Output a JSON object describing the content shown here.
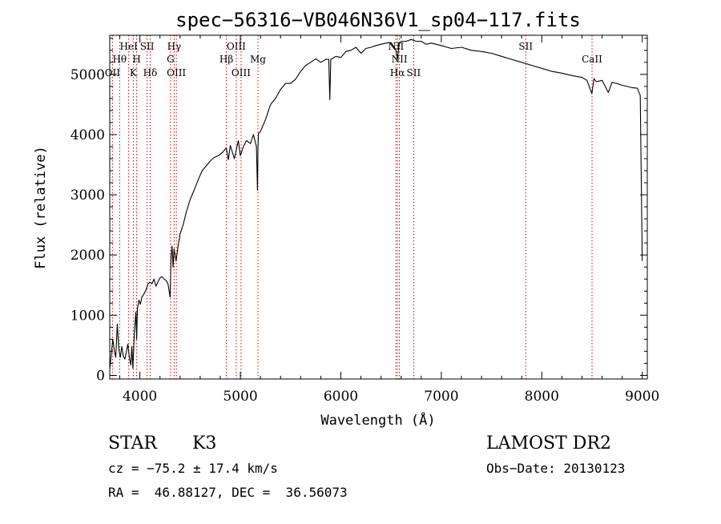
{
  "chart_data": {
    "type": "line",
    "title": "spec−56316−VB046N36V1_sp04−117.fits",
    "xlabel": "Wavelength (Å)",
    "ylabel": "Flux (relative)",
    "xlim": [
      3700,
      9050
    ],
    "ylim": [
      -60,
      5650
    ],
    "xticks": [
      4000,
      5000,
      6000,
      7000,
      8000,
      9000
    ],
    "yticks": [
      0,
      1000,
      2000,
      3000,
      4000,
      5000
    ],
    "grid": false,
    "series": [
      {
        "name": "flux",
        "x": [
          3700,
          3715,
          3730,
          3745,
          3760,
          3775,
          3790,
          3805,
          3820,
          3835,
          3850,
          3865,
          3880,
          3895,
          3910,
          3920,
          3930,
          3945,
          3960,
          3968,
          3975,
          3990,
          4005,
          4020,
          4040,
          4060,
          4080,
          4100,
          4120,
          4140,
          4160,
          4180,
          4200,
          4220,
          4240,
          4260,
          4280,
          4300,
          4310,
          4320,
          4330,
          4340,
          4360,
          4380,
          4400,
          4430,
          4460,
          4500,
          4540,
          4580,
          4620,
          4660,
          4700,
          4740,
          4780,
          4820,
          4860,
          4880,
          4900,
          4940,
          4980,
          5000,
          5030,
          5060,
          5100,
          5130,
          5160,
          5170,
          5175,
          5180,
          5200,
          5250,
          5300,
          5350,
          5400,
          5450,
          5500,
          5550,
          5600,
          5650,
          5700,
          5750,
          5800,
          5850,
          5880,
          5890,
          5900,
          5950,
          6000,
          6050,
          6100,
          6150,
          6200,
          6250,
          6300,
          6350,
          6400,
          6450,
          6500,
          6550,
          6563,
          6580,
          6600,
          6650,
          6700,
          6750,
          6800,
          6850,
          6900,
          6950,
          7000,
          7100,
          7200,
          7300,
          7400,
          7500,
          7600,
          7700,
          7800,
          7900,
          8000,
          8100,
          8200,
          8300,
          8400,
          8450,
          8498,
          8520,
          8542,
          8600,
          8662,
          8700,
          8800,
          8850,
          8900,
          8950,
          8980,
          9000
        ],
        "values": [
          100,
          350,
          600,
          420,
          300,
          850,
          430,
          300,
          480,
          320,
          270,
          380,
          520,
          300,
          170,
          480,
          120,
          700,
          1050,
          600,
          1100,
          1250,
          1180,
          1300,
          1350,
          1420,
          1520,
          1550,
          1520,
          1600,
          1480,
          1550,
          1620,
          1640,
          1600,
          1580,
          1520,
          1300,
          1950,
          2150,
          1800,
          2100,
          1900,
          2150,
          2350,
          2500,
          2700,
          2920,
          3080,
          3250,
          3400,
          3480,
          3560,
          3620,
          3650,
          3700,
          3780,
          3580,
          3820,
          3600,
          3900,
          3650,
          3800,
          3900,
          3850,
          4000,
          3800,
          3080,
          3750,
          4020,
          4050,
          4250,
          4500,
          4600,
          4750,
          4850,
          4850,
          4920,
          5050,
          5150,
          5200,
          5260,
          5200,
          5250,
          5250,
          4580,
          5250,
          5300,
          5280,
          5380,
          5400,
          5450,
          5350,
          5430,
          5450,
          5480,
          5500,
          5520,
          5530,
          5400,
          5250,
          5500,
          5550,
          5550,
          5580,
          5550,
          5550,
          5500,
          5520,
          5500,
          5480,
          5430,
          5450,
          5400,
          5380,
          5350,
          5300,
          5250,
          5200,
          5150,
          5100,
          5050,
          5020,
          4980,
          4950,
          4900,
          4680,
          4930,
          4880,
          4900,
          4700,
          4870,
          4820,
          4800,
          4780,
          4770,
          4650,
          1900
        ]
      }
    ],
    "line_ids": [
      {
        "label": "OII",
        "x": 3727,
        "row": 3
      },
      {
        "label": "Hθ",
        "x": 3798,
        "row": 2
      },
      {
        "label": "HeI",
        "x": 3889,
        "row": 1
      },
      {
        "label": "K",
        "x": 3934,
        "row": 3
      },
      {
        "label": "H",
        "x": 3968,
        "row": 2
      },
      {
        "label": "SII",
        "x": 4072,
        "row": 1
      },
      {
        "label": "Hδ",
        "x": 4102,
        "row": 3
      },
      {
        "label": "Hγ",
        "x": 4341,
        "row": 1
      },
      {
        "label": "G",
        "x": 4305,
        "row": 2
      },
      {
        "label": "OIII",
        "x": 4363,
        "row": 3
      },
      {
        "label": "OIII",
        "x": 4959,
        "row": 1
      },
      {
        "label": "Hβ",
        "x": 4861,
        "row": 2
      },
      {
        "label": "OIII",
        "x": 5007,
        "row": 3
      },
      {
        "label": "Mg",
        "x": 5175,
        "row": 2
      },
      {
        "label": "NII",
        "x": 6548,
        "row": 1
      },
      {
        "label": "NII",
        "x": 6583,
        "row": 2
      },
      {
        "label": "Hα",
        "x": 6563,
        "row": 3
      },
      {
        "label": "SII",
        "x": 6725,
        "row": 3
      },
      {
        "label": "SII",
        "x": 7840,
        "row": 1
      },
      {
        "label": "CaII",
        "x": 8500,
        "row": 2
      }
    ]
  },
  "info": {
    "object_class": "STAR",
    "subclass": "K3",
    "survey": "LAMOST DR2",
    "redshift": "cz = −75.2 ± 17.4 km/s",
    "obs_date": "Obs−Date: 20130123",
    "coords": "RA =  46.88127, DEC =  36.56073"
  },
  "colors": {
    "spectrum": "#000000",
    "line_markers": "#cc0000",
    "axes": "#000000"
  }
}
